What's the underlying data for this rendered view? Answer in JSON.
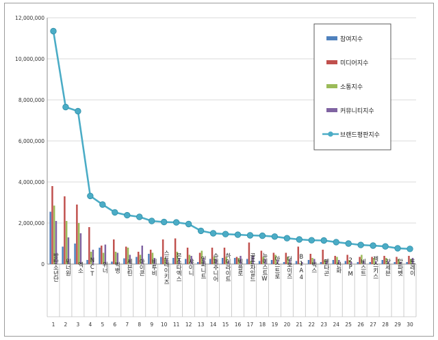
{
  "chart_data": {
    "type": "bar",
    "ylim": [
      0,
      12000000
    ],
    "y_ticks": [
      "0",
      "2,000,000",
      "4,000,000",
      "6,000,000",
      "8,000,000",
      "10,000,000",
      "12,000,000"
    ],
    "grid": true,
    "legend_placement": "top-right",
    "categories": [
      "방탄소년단",
      "워너원",
      "엑소",
      "NCT",
      "위너",
      "빅뱅",
      "세븐틴",
      "아이콘",
      "비투비",
      "스트레이키즈",
      "몬스타엑스",
      "샤이니",
      "인피니트",
      "슈퍼주니어",
      "하이라이트",
      "빅플로",
      "골든차일드",
      "뉴이스트W",
      "아스트로",
      "더보이즈",
      "B1A4",
      "빅스",
      "펜타곤",
      "신화",
      "2PM",
      "비스트",
      "젝스키스",
      "갓세븐",
      "알파벳",
      "트레이"
    ],
    "rank_labels": [
      "1",
      "2",
      "3",
      "4",
      "5",
      "6",
      "7",
      "8",
      "9",
      "10",
      "11",
      "12",
      "13",
      "14",
      "15",
      "16",
      "17",
      "18",
      "19",
      "20",
      "21",
      "22",
      "23",
      "24",
      "25",
      "26",
      "27",
      "28",
      "29",
      "30"
    ],
    "series": [
      {
        "name": "참여지수",
        "kind": "bar",
        "color": "#4f81bd",
        "values": [
          2550000,
          850000,
          1000000,
          200000,
          800000,
          120000,
          280000,
          350000,
          500000,
          350000,
          300000,
          250000,
          100000,
          250000,
          300000,
          300000,
          250000,
          150000,
          200000,
          100000,
          150000,
          200000,
          100000,
          200000,
          150000,
          100000,
          100000,
          200000,
          100000,
          100000
        ]
      },
      {
        "name": "미디어지수",
        "kind": "bar",
        "color": "#c0504d",
        "values": [
          3800000,
          3300000,
          2900000,
          1800000,
          900000,
          1200000,
          850000,
          600000,
          700000,
          1200000,
          1250000,
          800000,
          550000,
          800000,
          800000,
          350000,
          1050000,
          650000,
          550000,
          550000,
          850000,
          500000,
          700000,
          400000,
          450000,
          350000,
          350000,
          400000,
          350000,
          400000
        ]
      },
      {
        "name": "소통지수",
        "kind": "bar",
        "color": "#9bbb59",
        "values": [
          2850000,
          2100000,
          2000000,
          600000,
          550000,
          600000,
          800000,
          450000,
          550000,
          300000,
          600000,
          450000,
          650000,
          350000,
          350000,
          300000,
          150000,
          350000,
          450000,
          350000,
          50000,
          300000,
          200000,
          350000,
          200000,
          450000,
          300000,
          300000,
          250000,
          250000
        ]
      },
      {
        "name": "커뮤니티지수",
        "kind": "bar",
        "color": "#8064a2",
        "values": [
          2100000,
          1300000,
          1500000,
          700000,
          950000,
          550000,
          450000,
          900000,
          300000,
          250000,
          300000,
          400000,
          300000,
          250000,
          150000,
          400000,
          400000,
          250000,
          200000,
          250000,
          100000,
          250000,
          150000,
          200000,
          100000,
          150000,
          150000,
          150000,
          100000,
          300000
        ]
      },
      {
        "name": "브랜드평판지수",
        "kind": "line",
        "color": "#4bacc6",
        "values": [
          11350000,
          7650000,
          7450000,
          3320000,
          2900000,
          2520000,
          2380000,
          2300000,
          2100000,
          2050000,
          2030000,
          1950000,
          1620000,
          1500000,
          1460000,
          1430000,
          1400000,
          1380000,
          1340000,
          1260000,
          1200000,
          1160000,
          1150000,
          1070000,
          1000000,
          930000,
          900000,
          860000,
          770000,
          740000
        ]
      }
    ]
  }
}
